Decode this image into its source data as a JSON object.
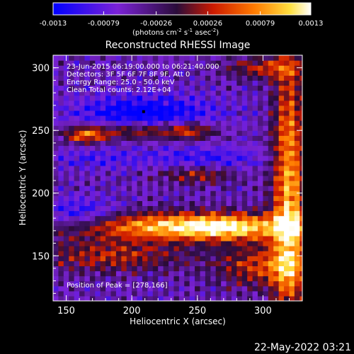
{
  "colorbar": {
    "tick_labels": [
      "-0.0013",
      "-0.00079",
      "-0.00026",
      "0.00026",
      "0.00079",
      "0.0013"
    ],
    "unit_label_main": "(photons cm",
    "unit_sup1": "-2",
    "unit_mid1": " s",
    "unit_sup2": "-1",
    "unit_mid2": " asec",
    "unit_sup3": "-2",
    "unit_end": ")"
  },
  "chart_data": {
    "type": "heatmap",
    "title": "Reconstructed RHESSI Image",
    "xlabel": "Heliocentric X (arcsec)",
    "ylabel": "Heliocentric Y (arcsec)",
    "xlim": [
      140,
      330
    ],
    "ylim": [
      114,
      310
    ],
    "x_ticks": [
      150,
      200,
      250,
      300
    ],
    "y_ticks": [
      150,
      200,
      250,
      300
    ],
    "colormap": [
      "#0000ff",
      "#7b22d6",
      "#2a0c3a",
      "#cc1a00",
      "#ff7a00",
      "#ffe040",
      "#ffffff"
    ],
    "color_range": [
      -0.0013,
      0.0013
    ],
    "annotations": [
      "23-Jun-2015 06:19:00.000 to 06:21:40.000",
      "Detectors: 3F 5F 6F 7F 8F 9F, Att 0",
      "Energy Range: 25.0 - 50.0 keV",
      "Clean     Total counts: 2.12E+04"
    ],
    "peak_label": "Position of Peak = [278,166]",
    "peak_position": [
      278,
      166
    ]
  },
  "footer": {
    "timestamp": "22-May-2022 03:21"
  }
}
